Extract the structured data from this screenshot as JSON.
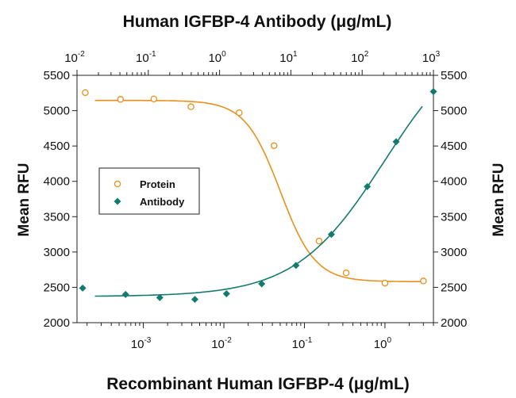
{
  "chart_data": {
    "type": "scatter",
    "title_top": "Human IGFBP-4 Antibody (μg/mL)",
    "xlabel_bottom": "Recombinant Human IGFBP-4 (μg/mL)",
    "ylabel_left": "Mean RFU",
    "ylabel_right": "Mean RFU",
    "ylim": [
      2000,
      5500
    ],
    "yticks": [
      2000,
      2500,
      3000,
      3500,
      4000,
      4500,
      5000,
      5500
    ],
    "x_top": {
      "scale": "log",
      "range": [
        0.01,
        1000
      ],
      "tick_exponents": [
        -2,
        -1,
        0,
        1,
        2,
        3
      ]
    },
    "x_bottom": {
      "scale": "log",
      "range": [
        0.00015,
        4
      ],
      "tick_exponents": [
        -3,
        -2,
        -1,
        0
      ]
    },
    "grid": false,
    "legend_position": "center-left",
    "series": [
      {
        "name": "Protein",
        "axis": "bottom",
        "marker": "open-circle",
        "color": "#e8901c",
        "x": [
          0.00019,
          0.00052,
          0.00135,
          0.0039,
          0.0155,
          0.042,
          0.152,
          0.33,
          1.0,
          3.0
        ],
        "y": [
          5255,
          5160,
          5165,
          5055,
          4970,
          4505,
          3155,
          2705,
          2560,
          2590
        ],
        "fit": {
          "bottom": 2580,
          "top": 5145,
          "ec50": 0.05,
          "hill": 2.0
        }
      },
      {
        "name": "Antibody",
        "axis": "top",
        "marker": "filled-diamond",
        "color": "#137a6e",
        "x": [
          0.012,
          0.048,
          0.145,
          0.45,
          1.25,
          3.9,
          11.8,
          37,
          118,
          300,
          1000
        ],
        "y": [
          2490,
          2400,
          2355,
          2330,
          2410,
          2550,
          2810,
          3250,
          3925,
          4560,
          5270
        ],
        "fit": {
          "bottom": 2370,
          "top": 6200,
          "ec50": 205,
          "hill": 0.7
        }
      }
    ]
  }
}
